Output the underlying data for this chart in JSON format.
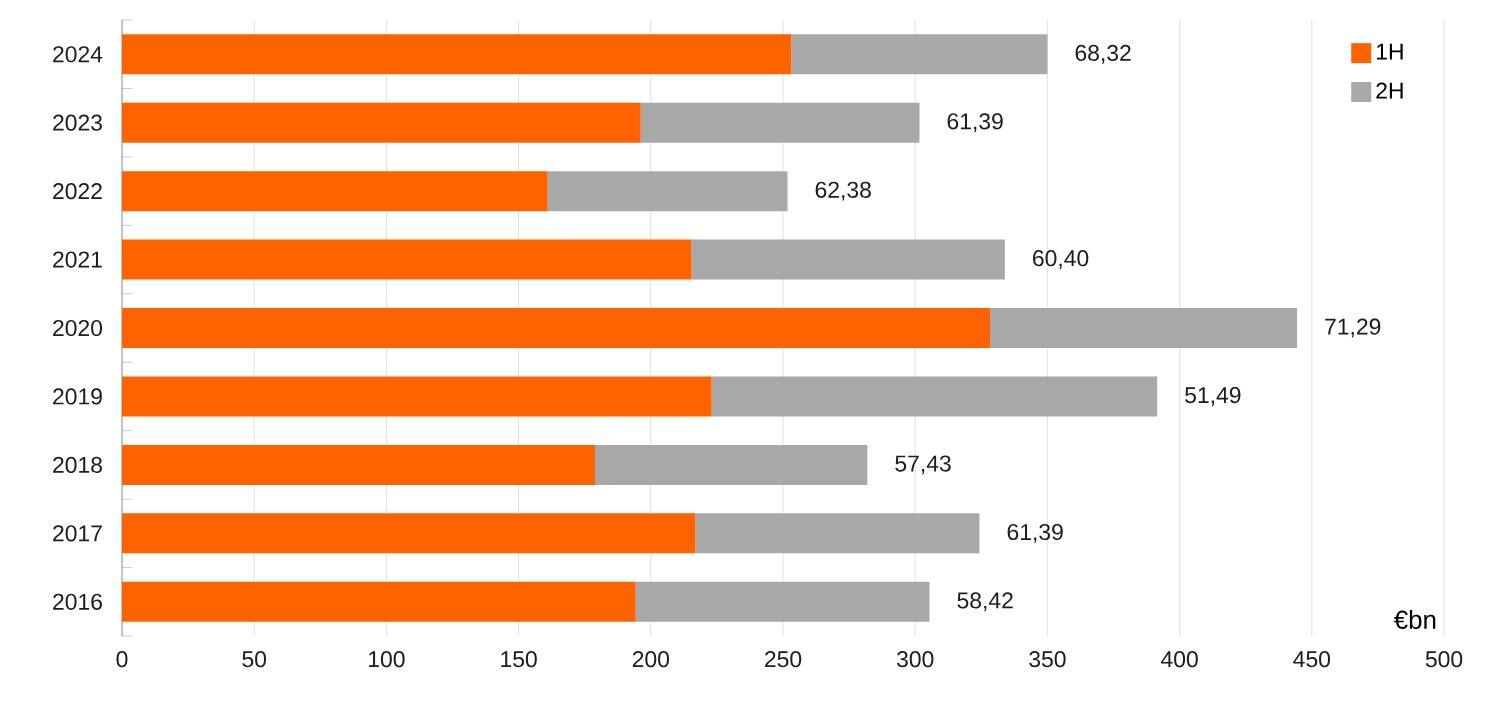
{
  "chart_data": {
    "type": "bar",
    "orientation": "horizontal",
    "stacked": true,
    "categories": [
      "2024",
      "2023",
      "2022",
      "2021",
      "2020",
      "2019",
      "2018",
      "2017",
      "2016"
    ],
    "series": [
      {
        "name": "1H",
        "color": "#ff6200",
        "values": [
          253.2,
          196.2,
          161.0,
          215.4,
          328.3,
          223.0,
          178.9,
          216.9,
          194.3
        ]
      },
      {
        "name": "2H",
        "color": "#a8a8a8",
        "values": [
          96.8,
          105.4,
          90.7,
          118.5,
          116.1,
          168.5,
          103.0,
          107.4,
          111.1
        ]
      }
    ],
    "xlabel": "€bn",
    "xlim": [
      0,
      500
    ],
    "xticks": [
      0,
      50,
      100,
      150,
      200,
      250,
      300,
      350,
      400,
      450,
      500
    ],
    "grid": "x",
    "legend": "top right",
    "annotations": [
      {
        "text": "68,32",
        "x": 350,
        "y": "2024"
      },
      {
        "text": "61,39",
        "x": 301.6,
        "y": "2023"
      },
      {
        "text": "62,38",
        "x": 251.7,
        "y": "2022"
      },
      {
        "text": "60,40",
        "x": 333.9,
        "y": "2021"
      },
      {
        "text": "71,29",
        "x": 444.4,
        "y": "2020"
      },
      {
        "text": "51,49",
        "x": 391.5,
        "y": "2019"
      },
      {
        "text": "57,43",
        "x": 281.9,
        "y": "2018"
      },
      {
        "text": "61,39",
        "x": 324.3,
        "y": "2017"
      },
      {
        "text": "58,42",
        "x": 305.4,
        "y": "2016"
      }
    ]
  }
}
